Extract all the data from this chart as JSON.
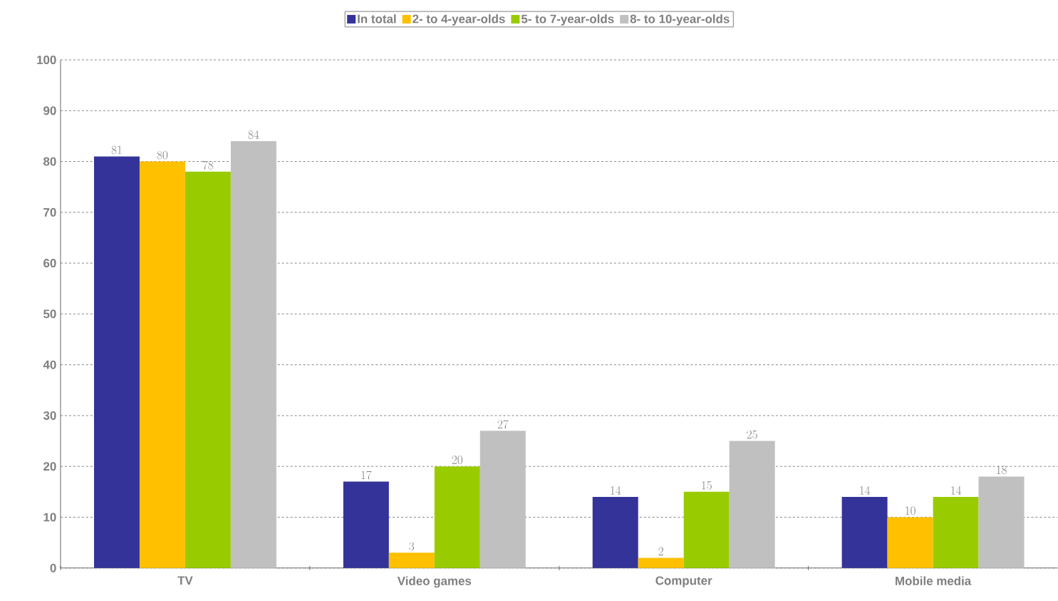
{
  "chart_data": {
    "type": "bar",
    "categories": [
      "TV",
      "Video games",
      "Computer",
      "Mobile media"
    ],
    "series": [
      {
        "name": "In total",
        "color": "#333399",
        "values": [
          81,
          17,
          14,
          14
        ]
      },
      {
        "name": "2- to 4-year-olds",
        "color": "#ffc000",
        "values": [
          80,
          3,
          2,
          10
        ]
      },
      {
        "name": "5- to 7-year-olds",
        "color": "#99cc00",
        "values": [
          78,
          20,
          15,
          14
        ]
      },
      {
        "name": "8- to 10-year-olds",
        "color": "#c0c0c0",
        "values": [
          84,
          27,
          25,
          18
        ]
      }
    ],
    "ylim": [
      0,
      100
    ],
    "yticks": [
      0,
      10,
      20,
      30,
      40,
      50,
      60,
      70,
      80,
      90,
      100
    ],
    "grid": "y",
    "legend": "top",
    "data_labels": true
  }
}
